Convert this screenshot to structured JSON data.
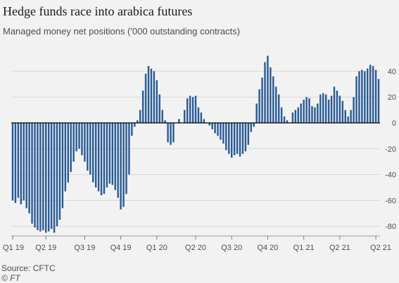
{
  "title": "Hedge funds race into arabica futures",
  "subtitle": "Managed money net positions ('000 outstanding contracts)",
  "source": "Source: CFTC",
  "credit": "© FT",
  "colors": {
    "bar": "#2a5b94",
    "zero": "#000000",
    "grid": "#d6d6d6",
    "text": "#4d4d4d"
  },
  "chart_data": {
    "type": "bar",
    "title": "Hedge funds race into arabica futures",
    "subtitle": "Managed money net positions ('000 outstanding contracts)",
    "ylim": [
      -90,
      55
    ],
    "yticks": [
      40,
      20,
      0,
      -20,
      -40,
      -60,
      -80
    ],
    "ytick_labels": [
      "40",
      "20",
      "0",
      "-20",
      "-40",
      "-60",
      "-80"
    ],
    "xticks": [
      {
        "label": "Q1 19",
        "index": 0
      },
      {
        "label": "Q2 19",
        "index": 12
      },
      {
        "label": "Q3 19",
        "index": 26
      },
      {
        "label": "Q4 19",
        "index": 39
      },
      {
        "label": "Q1 20",
        "index": 52
      },
      {
        "label": "Q2 20",
        "index": 66
      },
      {
        "label": "Q3 20",
        "index": 79
      },
      {
        "label": "Q4 20",
        "index": 92
      },
      {
        "label": "Q1 21",
        "index": 105
      },
      {
        "label": "Q2 21",
        "index": 118
      },
      {
        "label": "Q2 21",
        "index": 131
      }
    ],
    "grid": true,
    "values": [
      -60,
      -62,
      -58,
      -63,
      -60,
      -66,
      -70,
      -78,
      -81,
      -83,
      -84,
      -83,
      -85,
      -84,
      -82,
      -85,
      -80,
      -75,
      -66,
      -53,
      -46,
      -38,
      -30,
      -22,
      -20,
      -25,
      -30,
      -37,
      -40,
      -46,
      -50,
      -53,
      -56,
      -55,
      -50,
      -47,
      -48,
      -52,
      -58,
      -67,
      -65,
      -55,
      -40,
      -10,
      -3,
      2,
      10,
      25,
      38,
      44,
      42,
      40,
      33,
      22,
      10,
      2,
      -15,
      -17,
      -15,
      0,
      3,
      0,
      10,
      19,
      21,
      20,
      21,
      12,
      8,
      3,
      0,
      -2,
      -5,
      -8,
      -10,
      -13,
      -16,
      -21,
      -24,
      -27,
      -25,
      -24,
      -26,
      -24,
      -22,
      -17,
      -7,
      -3,
      15,
      26,
      35,
      47,
      52,
      43,
      36,
      28,
      22,
      12,
      5,
      2,
      0,
      8,
      10,
      12,
      15,
      18,
      20,
      19,
      13,
      12,
      15,
      22,
      23,
      22,
      18,
      21,
      28,
      25,
      21,
      17,
      10,
      5,
      10,
      20,
      36,
      40,
      41,
      40,
      42,
      45,
      44,
      41,
      34
    ]
  }
}
